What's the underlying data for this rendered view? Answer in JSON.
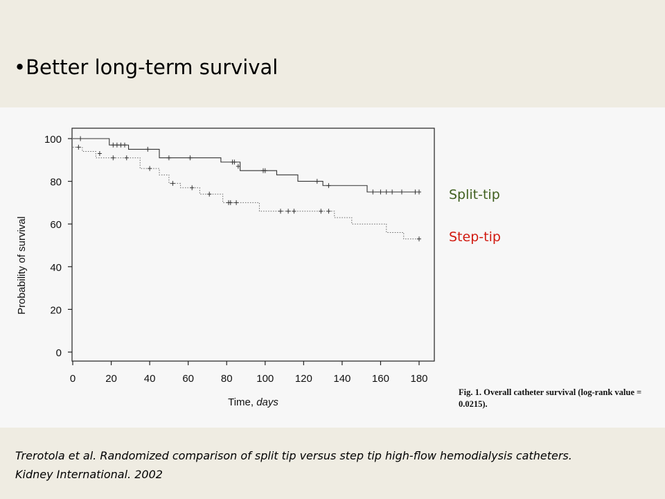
{
  "slide": {
    "title": "•Better long-term survival"
  },
  "legend": {
    "split_tip": "Split-tip",
    "step_tip": "Step-tip",
    "split_color": "#3f5f1e",
    "step_color": "#d11a10"
  },
  "caption": "Fig. 1. Overall catheter survival (log-rank value = 0.0215).",
  "citation": {
    "line1": "Trerotola et al. Randomized comparison of split tip versus step tip high-flow hemodialysis catheters.",
    "line2": "Kidney International. 2002"
  },
  "chart_data": {
    "type": "line",
    "title": "",
    "xlabel_prefix": "Time,",
    "xlabel_unit": "days",
    "ylabel": "Probability of survival",
    "xlim": [
      0,
      180
    ],
    "ylim": [
      0,
      100
    ],
    "x_ticks": [
      0,
      20,
      40,
      60,
      80,
      100,
      120,
      140,
      160,
      180
    ],
    "y_ticks": [
      0,
      20,
      40,
      60,
      80,
      100
    ],
    "grid": false,
    "series": [
      {
        "name": "Split-tip",
        "style": "solid",
        "steps": [
          [
            0,
            100
          ],
          [
            19,
            97
          ],
          [
            29,
            95
          ],
          [
            45,
            91
          ],
          [
            77,
            89
          ],
          [
            87,
            85
          ],
          [
            106,
            83
          ],
          [
            117,
            80
          ],
          [
            130,
            78
          ],
          [
            153,
            75
          ],
          [
            180,
            75
          ]
        ],
        "censored": [
          [
            4,
            100
          ],
          [
            21,
            97
          ],
          [
            23,
            97
          ],
          [
            25,
            97
          ],
          [
            27,
            97
          ],
          [
            39,
            95
          ],
          [
            50,
            91
          ],
          [
            61,
            91
          ],
          [
            83,
            89
          ],
          [
            84,
            89
          ],
          [
            86,
            87
          ],
          [
            99,
            85
          ],
          [
            100,
            85
          ],
          [
            127,
            80
          ],
          [
            133,
            78
          ],
          [
            156,
            75
          ],
          [
            160,
            75
          ],
          [
            163,
            75
          ],
          [
            166,
            75
          ],
          [
            171,
            75
          ],
          [
            178,
            75
          ],
          [
            180,
            75
          ]
        ]
      },
      {
        "name": "Step-tip",
        "style": "dotted",
        "steps": [
          [
            0,
            96
          ],
          [
            5,
            94
          ],
          [
            12,
            91
          ],
          [
            35,
            86
          ],
          [
            45,
            83
          ],
          [
            50,
            79
          ],
          [
            56,
            77
          ],
          [
            66,
            74
          ],
          [
            78,
            70
          ],
          [
            97,
            66
          ],
          [
            136,
            63
          ],
          [
            145,
            60
          ],
          [
            163,
            56
          ],
          [
            172,
            53
          ],
          [
            180,
            53
          ]
        ],
        "censored": [
          [
            3,
            96
          ],
          [
            14,
            93
          ],
          [
            21,
            91
          ],
          [
            28,
            91
          ],
          [
            40,
            86
          ],
          [
            52,
            79
          ],
          [
            62,
            77
          ],
          [
            71,
            74
          ],
          [
            81,
            70
          ],
          [
            82,
            70
          ],
          [
            85,
            70
          ],
          [
            108,
            66
          ],
          [
            112,
            66
          ],
          [
            115,
            66
          ],
          [
            129,
            66
          ],
          [
            133,
            66
          ],
          [
            180,
            53
          ]
        ]
      }
    ]
  }
}
